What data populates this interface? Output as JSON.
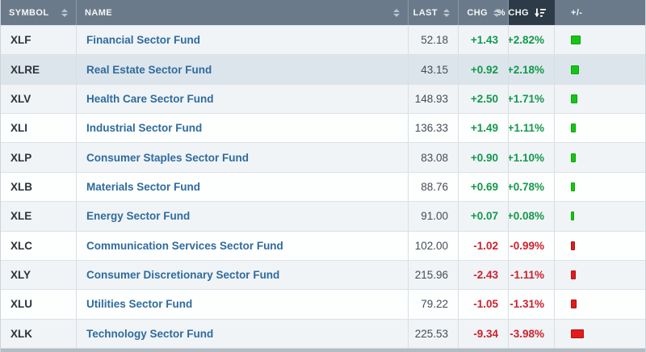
{
  "table": {
    "columns": [
      {
        "key": "symbol",
        "label": "SYMBOL",
        "sortable": true
      },
      {
        "key": "name",
        "label": "NAME",
        "sortable": true
      },
      {
        "key": "last",
        "label": "LAST",
        "sortable": true
      },
      {
        "key": "chg",
        "label": "CHG",
        "sortable": true
      },
      {
        "key": "pct_chg",
        "label": "% CHG",
        "sortable": true,
        "sorted": "desc",
        "active": true
      },
      {
        "key": "bar",
        "label": "+/-",
        "sortable": false
      }
    ],
    "rows": [
      {
        "symbol": "XLF",
        "name": "Financial Sector Fund",
        "last": "52.18",
        "chg": "+1.43",
        "pct_chg": "+2.82%",
        "pct_value": 2.82,
        "direction": "up"
      },
      {
        "symbol": "XLRE",
        "name": "Real Estate Sector Fund",
        "last": "43.15",
        "chg": "+0.92",
        "pct_chg": "+2.18%",
        "pct_value": 2.18,
        "direction": "up",
        "highlighted": true
      },
      {
        "symbol": "XLV",
        "name": "Health Care Sector Fund",
        "last": "148.93",
        "chg": "+2.50",
        "pct_chg": "+1.71%",
        "pct_value": 1.71,
        "direction": "up"
      },
      {
        "symbol": "XLI",
        "name": "Industrial Sector Fund",
        "last": "136.33",
        "chg": "+1.49",
        "pct_chg": "+1.11%",
        "pct_value": 1.11,
        "direction": "up"
      },
      {
        "symbol": "XLP",
        "name": "Consumer Staples Sector Fund",
        "last": "83.08",
        "chg": "+0.90",
        "pct_chg": "+1.10%",
        "pct_value": 1.1,
        "direction": "up"
      },
      {
        "symbol": "XLB",
        "name": "Materials Sector Fund",
        "last": "88.76",
        "chg": "+0.69",
        "pct_chg": "+0.78%",
        "pct_value": 0.78,
        "direction": "up"
      },
      {
        "symbol": "XLE",
        "name": "Energy Sector Fund",
        "last": "91.00",
        "chg": "+0.07",
        "pct_chg": "+0.08%",
        "pct_value": 0.08,
        "direction": "up"
      },
      {
        "symbol": "XLC",
        "name": "Communication Services Sector Fund",
        "last": "102.00",
        "chg": "-1.02",
        "pct_chg": "-0.99%",
        "pct_value": -0.99,
        "direction": "down"
      },
      {
        "symbol": "XLY",
        "name": "Consumer Discretionary Sector Fund",
        "last": "215.96",
        "chg": "-2.43",
        "pct_chg": "-1.11%",
        "pct_value": -1.11,
        "direction": "down"
      },
      {
        "symbol": "XLU",
        "name": "Utilities Sector Fund",
        "last": "79.22",
        "chg": "-1.05",
        "pct_chg": "-1.31%",
        "pct_value": -1.31,
        "direction": "down"
      },
      {
        "symbol": "XLK",
        "name": "Technology Sector Fund",
        "last": "225.53",
        "chg": "-9.34",
        "pct_chg": "-3.98%",
        "pct_value": -3.98,
        "direction": "down"
      }
    ]
  },
  "colors": {
    "up_text": "#13994c",
    "down_text": "#cf212e",
    "bar_up": "#15c515",
    "bar_down": "#e31b1b",
    "header_bg": "#6b7a8a",
    "header_active_bg": "#2d3b48",
    "link": "#2f6b9e",
    "row_alt_bg": "#f0f4f7",
    "row_highlight_bg": "#dde5ec"
  }
}
